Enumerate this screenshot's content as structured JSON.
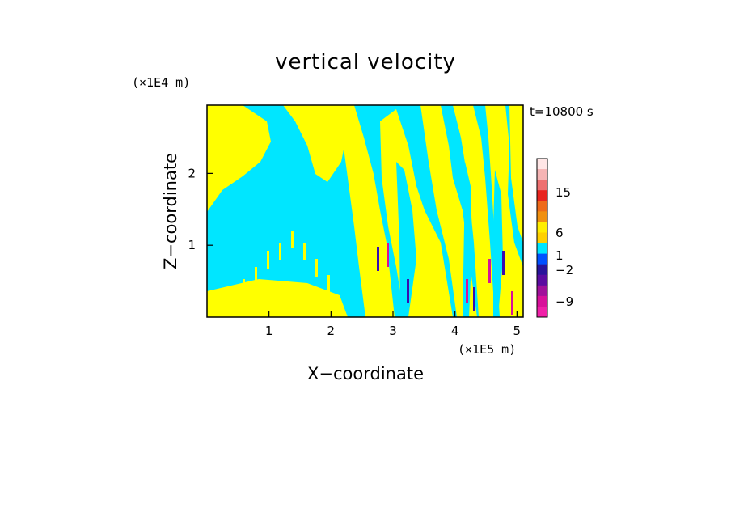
{
  "chart_data": {
    "type": "heatmap",
    "title": "vertical velocity",
    "xlabel": "X−coordinate",
    "ylabel": "Z−coordinate",
    "x_unit": "(×1E5 m)",
    "y_unit": "(×1E4 m)",
    "time_label": "t=10800 s",
    "xlim": [
      0,
      5.1
    ],
    "ylim": [
      0,
      2.95
    ],
    "x_ticks": [
      "1",
      "2",
      "3",
      "4",
      "5"
    ],
    "y_ticks": [
      "1",
      "2"
    ],
    "colorbar": {
      "labels": [
        "15",
        "6",
        "1",
        "−2",
        "−9"
      ],
      "colors": [
        "#ffe6e6",
        "#f5b4b4",
        "#ee7070",
        "#e8241e",
        "#ee6a1a",
        "#f09010",
        "#ffee00",
        "#ffd000",
        "#00e6ff",
        "#0050ff",
        "#28149a",
        "#5a0ca0",
        "#a0109a",
        "#d8109a",
        "#f020a8"
      ]
    },
    "colors": {
      "negative": "#00e6ff",
      "positive": "#ffff00",
      "strong_down": "#3a0cb0",
      "strong_up": "#d8109a"
    }
  }
}
